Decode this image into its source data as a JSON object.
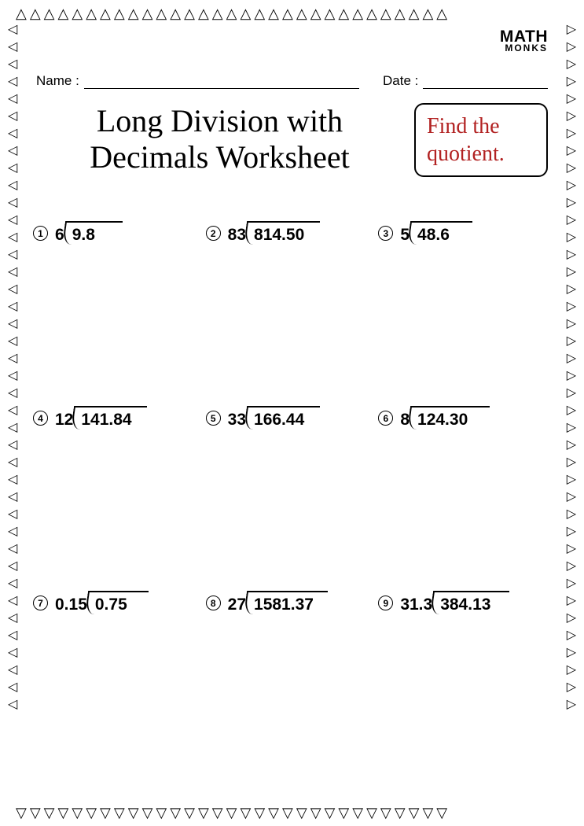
{
  "logo": {
    "line1": "MATH",
    "line2": "MONKS"
  },
  "meta": {
    "name_label": "Name :",
    "date_label": "Date :"
  },
  "title": "Long Division with Decimals Worksheet",
  "instruction": "Find the quotient.",
  "instruction_color": "#b22222",
  "problems": [
    {
      "n": "1",
      "divisor": "6",
      "dividend": "9.8",
      "vw": 72
    },
    {
      "n": "2",
      "divisor": "83",
      "dividend": "814.50",
      "vw": 92
    },
    {
      "n": "3",
      "divisor": "5",
      "dividend": "48.6",
      "vw": 78
    },
    {
      "n": "4",
      "divisor": "12",
      "dividend": "141.84",
      "vw": 92
    },
    {
      "n": "5",
      "divisor": "33",
      "dividend": "166.44",
      "vw": 92
    },
    {
      "n": "6",
      "divisor": "8",
      "dividend": "124.30",
      "vw": 100
    },
    {
      "n": "7",
      "divisor": "0.15",
      "dividend": "0.75",
      "vw": 76
    },
    {
      "n": "8",
      "divisor": "27",
      "dividend": "1581.37",
      "vw": 102
    },
    {
      "n": "9",
      "divisor": "31.3",
      "dividend": "384.13",
      "vw": 96
    }
  ],
  "border": {
    "tri_up": "△",
    "tri_down": "▽",
    "tri_left": "◁",
    "tri_right": "▷",
    "h_count": 31,
    "v_count": 40
  },
  "colors": {
    "text": "#000000",
    "bg": "#ffffff"
  }
}
